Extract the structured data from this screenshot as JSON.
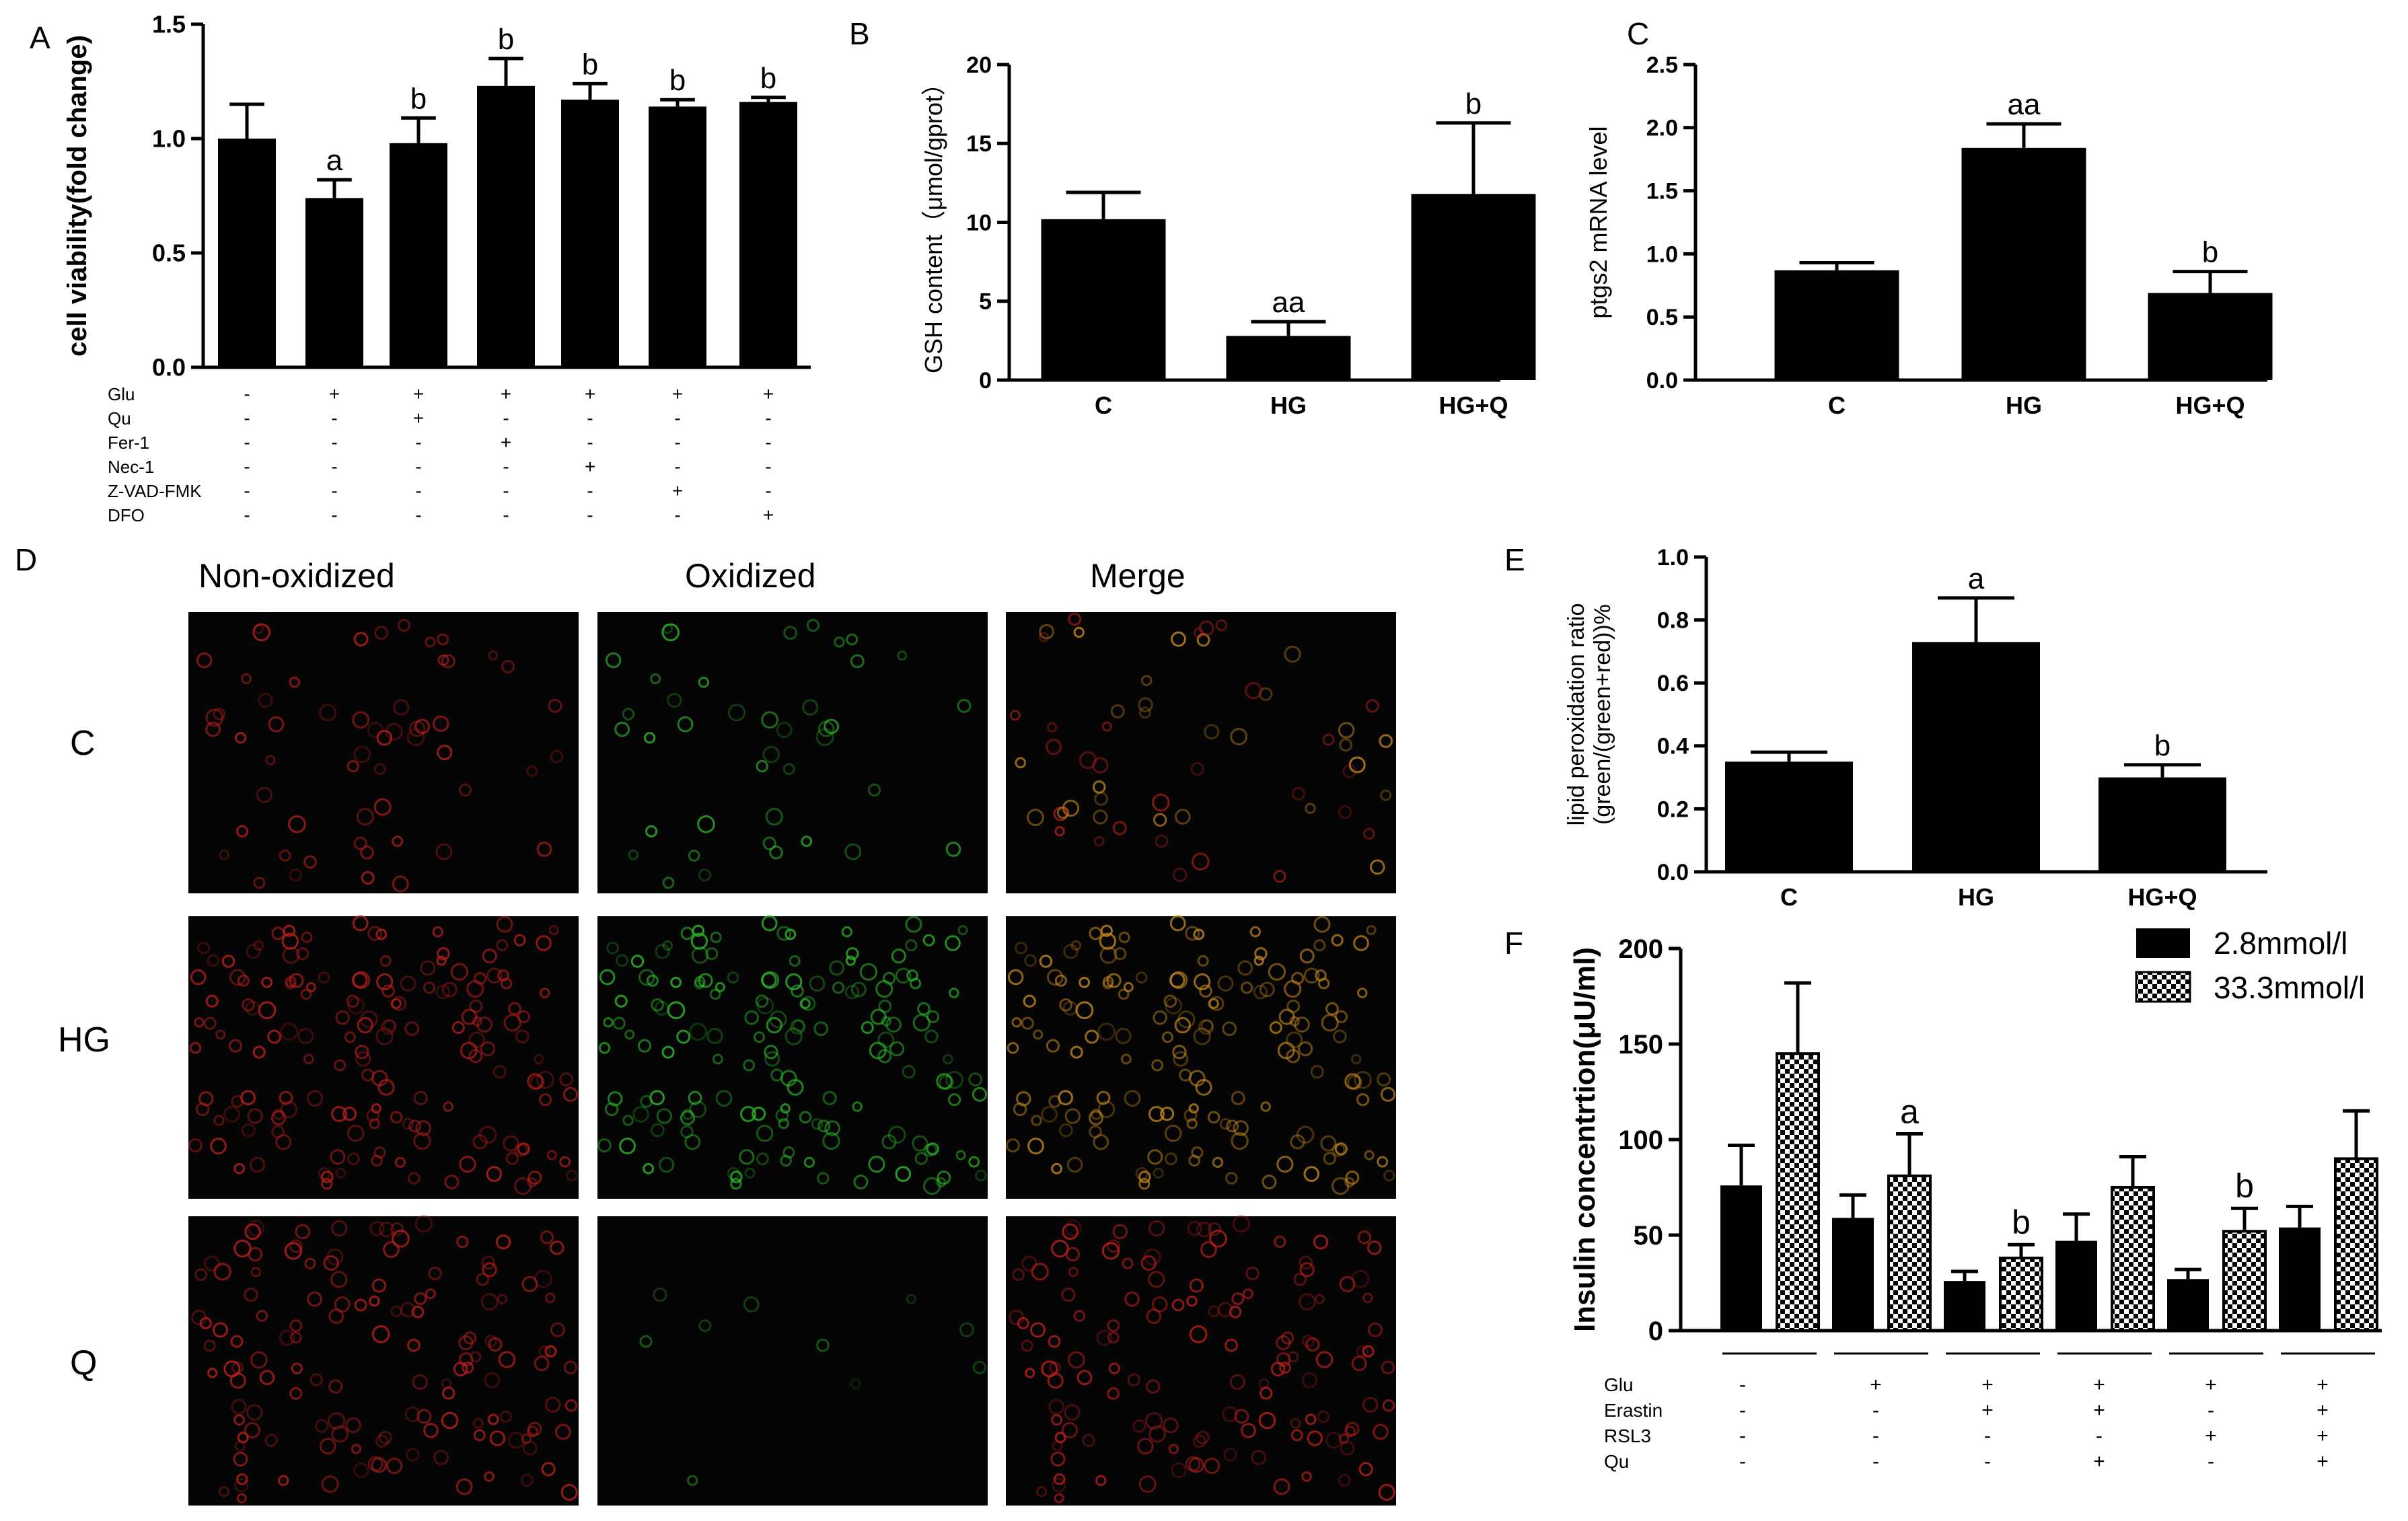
{
  "colors": {
    "bar": "#000000",
    "background": "#ffffff",
    "micro_background": "#050505",
    "non_oxidized_cell": "#c0201d",
    "oxidized_cell": "#2fbf2c",
    "merge_cell": "#c88a1e"
  },
  "chart_data": [
    {
      "panel": "A",
      "type": "bar",
      "ylabel": "cell viability(fold change)",
      "ylim": [
        0,
        1.5
      ],
      "yticks": [
        "0.0",
        "0.5",
        "1.0",
        "1.5"
      ],
      "values": [
        1.0,
        0.74,
        0.98,
        1.23,
        1.17,
        1.14,
        1.16
      ],
      "errors": [
        0.15,
        0.08,
        0.11,
        0.12,
        0.07,
        0.03,
        0.02
      ],
      "sig": [
        "",
        "a",
        "b",
        "b",
        "b",
        "b",
        "b"
      ],
      "condition_rows": [
        {
          "label": "Glu",
          "marks": [
            "-",
            "+",
            "+",
            "+",
            "+",
            "+",
            "+"
          ]
        },
        {
          "label": "Qu",
          "marks": [
            "-",
            "-",
            "+",
            "-",
            "-",
            "-",
            "-"
          ]
        },
        {
          "label": "Fer-1",
          "marks": [
            "-",
            "-",
            "-",
            "+",
            "-",
            "-",
            "-"
          ]
        },
        {
          "label": "Nec-1",
          "marks": [
            "-",
            "-",
            "-",
            "-",
            "+",
            "-",
            "-"
          ]
        },
        {
          "label": "Z-VAD-FMK",
          "marks": [
            "-",
            "-",
            "-",
            "-",
            "-",
            "+",
            "-"
          ]
        },
        {
          "label": "DFO",
          "marks": [
            "-",
            "-",
            "-",
            "-",
            "-",
            "-",
            "+"
          ]
        }
      ]
    },
    {
      "panel": "B",
      "type": "bar",
      "ylabel": "GSH content（μmol/gprot）",
      "ylim": [
        0,
        20
      ],
      "yticks": [
        "0",
        "5",
        "10",
        "15",
        "20"
      ],
      "categories": [
        "C",
        "HG",
        "HG+Q"
      ],
      "values": [
        10.2,
        2.8,
        11.8
      ],
      "errors": [
        1.7,
        0.9,
        4.5
      ],
      "sig": [
        "",
        "aa",
        "b"
      ]
    },
    {
      "panel": "C",
      "type": "bar",
      "ylabel": "ptgs2 mRNA level",
      "ylim": [
        0,
        2.5
      ],
      "yticks": [
        "0.0",
        "0.5",
        "1.0",
        "1.5",
        "2.0",
        "2.5"
      ],
      "categories": [
        "C",
        "HG",
        "HG+Q"
      ],
      "values": [
        0.87,
        1.84,
        0.69
      ],
      "errors": [
        0.06,
        0.19,
        0.17
      ],
      "sig": [
        "",
        "aa",
        "b"
      ]
    },
    {
      "panel": "E",
      "type": "bar",
      "ylabel": "lipid peroxidation ratio (green/(green+red))%",
      "ylabel_lines": [
        "lipid peroxidation ratio",
        "(green/(green+red))%"
      ],
      "ylim": [
        0,
        1.0
      ],
      "yticks": [
        "0.0",
        "0.2",
        "0.4",
        "0.6",
        "0.8",
        "1.0"
      ],
      "categories": [
        "C",
        "HG",
        "HG+Q"
      ],
      "values": [
        0.35,
        0.73,
        0.3
      ],
      "errors": [
        0.03,
        0.14,
        0.04
      ],
      "sig": [
        "",
        "a",
        "b"
      ]
    },
    {
      "panel": "F",
      "type": "bar",
      "ylabel": "Insulin concentrtion(μU/ml)",
      "ylim": [
        0,
        200
      ],
      "yticks": [
        "0",
        "50",
        "100",
        "150",
        "200"
      ],
      "series": [
        {
          "name": "2.8mmol/l",
          "values": [
            76,
            59,
            26,
            47,
            27,
            54
          ],
          "errors": [
            21,
            12,
            5,
            14,
            5,
            11
          ],
          "sig": [
            "",
            "",
            "",
            "",
            "",
            ""
          ]
        },
        {
          "name": "33.3mmol/l",
          "values": [
            145,
            81,
            38,
            75,
            52,
            90
          ],
          "errors": [
            37,
            22,
            7,
            16,
            12,
            25
          ],
          "sig": [
            "",
            "a",
            "b",
            "",
            "b",
            ""
          ]
        }
      ],
      "condition_rows": [
        {
          "label": "Glu",
          "marks": [
            "-",
            "+",
            "+",
            "+",
            "+",
            "+"
          ]
        },
        {
          "label": "Erastin",
          "marks": [
            "-",
            "-",
            "+",
            "+",
            "-",
            "+"
          ]
        },
        {
          "label": "RSL3",
          "marks": [
            "-",
            "-",
            "-",
            "-",
            "+",
            "+"
          ]
        },
        {
          "label": "Qu",
          "marks": [
            "-",
            "-",
            "-",
            "+",
            "-",
            "+"
          ]
        }
      ]
    }
  ],
  "panel_letters": {
    "A": "A",
    "B": "B",
    "C": "C",
    "D": "D",
    "E": "E",
    "F": "F"
  },
  "micrographs": {
    "column_labels": [
      "Non-oxidized",
      "Oxidized",
      "Merge"
    ],
    "row_labels": [
      "C",
      "HG",
      "Q"
    ]
  }
}
